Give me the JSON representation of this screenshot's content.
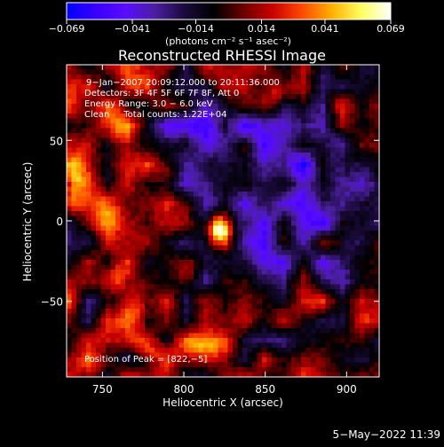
{
  "chart_data": {
    "type": "heatmap",
    "title": "Reconstructed RHESSI Image",
    "xlabel": "Heliocentric X (arcsec)",
    "ylabel": "Heliocentric Y (arcsec)",
    "xlim": [
      728,
      920
    ],
    "ylim": [
      -97,
      97
    ],
    "xticks": [
      750,
      800,
      850,
      900
    ],
    "yticks": [
      50,
      0,
      -50
    ],
    "colorbar": {
      "min": -0.069,
      "max": 0.069,
      "tick_values": [
        -0.069,
        -0.041,
        -0.014,
        0.014,
        0.041,
        0.069
      ],
      "tick_labels": [
        "−0.069",
        "−0.041",
        "−0.014",
        "0.014",
        "0.041",
        "0.069"
      ],
      "unit_label": "(photons cm⁻² s⁻¹ asec⁻²)",
      "colormap": [
        "#0000ff",
        "#3800ff",
        "#5a0cff",
        "#4b1fa0",
        "#1a0a3a",
        "#000000",
        "#6a0000",
        "#cc0000",
        "#ff4a00",
        "#ffb000",
        "#ffff60",
        "#ffffff"
      ]
    },
    "peak": {
      "x": 822,
      "y": -5,
      "value": 0.069
    },
    "annotations": {
      "time": "9−Jan−2007 20:09:12.000 to 20:11:36.000",
      "detectors": "Detectors: 3F 4F 5F 6F 7F 8F, Att 0",
      "energy": "Energy Range: 3.0 − 6.0 keV",
      "clean": "Clean     Total counts: 1.22E+04",
      "peak_text": "Position of Peak = [822,−5]"
    },
    "features": [
      {
        "x": 822,
        "y": -5,
        "sx": 5,
        "sy": 6,
        "a": 1.25
      },
      {
        "x": 772,
        "y": -55,
        "sx": 7,
        "sy": 11,
        "a": 0.55
      },
      {
        "x": 760,
        "y": -35,
        "sx": 5,
        "sy": 6,
        "a": 0.45
      },
      {
        "x": 733,
        "y": 25,
        "sx": 5,
        "sy": 12,
        "a": 0.6
      },
      {
        "x": 757,
        "y": 60,
        "sx": 8,
        "sy": 13,
        "a": 0.45
      },
      {
        "x": 752,
        "y": 8,
        "sx": 7,
        "sy": 9,
        "a": 0.35
      },
      {
        "x": 857,
        "y": 78,
        "sx": 7,
        "sy": 8,
        "a": 0.5
      },
      {
        "x": 900,
        "y": 38,
        "sx": 5,
        "sy": 8,
        "a": 0.35
      },
      {
        "x": 895,
        "y": 73,
        "sx": 6,
        "sy": 6,
        "a": 0.3
      },
      {
        "x": 812,
        "y": -78,
        "sx": 14,
        "sy": 6,
        "a": 0.4
      },
      {
        "x": 780,
        "y": -82,
        "sx": 7,
        "sy": 5,
        "a": 0.35
      },
      {
        "x": 875,
        "y": -55,
        "sx": 7,
        "sy": 10,
        "a": 0.3
      },
      {
        "x": 895,
        "y": -15,
        "sx": 5,
        "sy": 7,
        "a": 0.25
      },
      {
        "x": 750,
        "y": -90,
        "sx": 9,
        "sy": 5,
        "a": 0.3
      },
      {
        "x": 770,
        "y": 85,
        "sx": 9,
        "sy": 5,
        "a": 0.3
      },
      {
        "x": 790,
        "y": 30,
        "sx": 5,
        "sy": 5,
        "a": 0.2
      },
      {
        "x": 802,
        "y": -32,
        "sx": 5,
        "sy": 5,
        "a": 0.2
      },
      {
        "x": 848,
        "y": 35,
        "sx": 30,
        "sy": 30,
        "a": -0.5
      },
      {
        "x": 835,
        "y": -35,
        "sx": 25,
        "sy": 20,
        "a": -0.4
      },
      {
        "x": 805,
        "y": 60,
        "sx": 16,
        "sy": 14,
        "a": -0.35
      },
      {
        "x": 880,
        "y": 10,
        "sx": 18,
        "sy": 30,
        "a": -0.35
      }
    ]
  },
  "footer": {
    "date": "5−May−2022 11:39"
  }
}
